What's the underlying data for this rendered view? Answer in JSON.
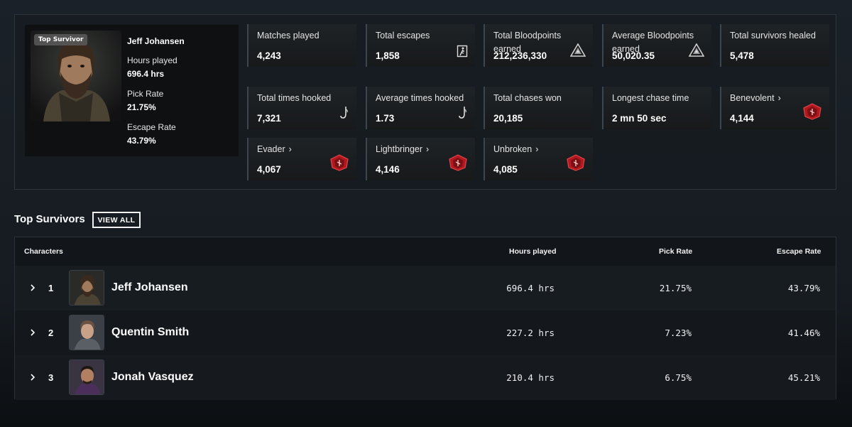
{
  "hero": {
    "tag": "Top Survivor",
    "name": "Jeff Johansen",
    "hours_label": "Hours played",
    "hours_value": "696.4 hrs",
    "pick_label": "Pick Rate",
    "pick_value": "21.75%",
    "escape_label": "Escape Rate",
    "escape_value": "43.79%"
  },
  "stats": [
    {
      "label": "Matches played",
      "value": "4,243",
      "icon": "none"
    },
    {
      "label": "Total escapes",
      "value": "1,858",
      "icon": "exit-door-icon"
    },
    {
      "label": "Total Bloodpoints earned",
      "value": "212,236,330",
      "icon": "bloodpoints-icon"
    },
    {
      "label": "Average Bloodpoints earned",
      "value": "50,020.35",
      "icon": "bloodpoints-icon"
    },
    {
      "label": "Total survivors healed",
      "value": "5,478",
      "icon": "none"
    },
    {
      "label": "Total times hooked",
      "value": "7,321",
      "icon": "hook-icon"
    },
    {
      "label": "Average times hooked",
      "value": "1.73",
      "icon": "hook-icon"
    },
    {
      "label": "Total chases won",
      "value": "20,185",
      "icon": "none"
    },
    {
      "label": "Longest chase time",
      "value": "2 mn 50 sec",
      "icon": "none"
    },
    {
      "label": "Benevolent",
      "value": "4,144",
      "icon": "emblem-icon",
      "link": true
    },
    {
      "label": "Evader",
      "value": "4,067",
      "icon": "emblem-icon",
      "link": true
    },
    {
      "label": "Lightbringer",
      "value": "4,146",
      "icon": "emblem-icon",
      "link": true
    },
    {
      "label": "Unbroken",
      "value": "4,085",
      "icon": "emblem-icon",
      "link": true
    }
  ],
  "top": {
    "title": "Top Survivors",
    "view_all": "VIEW ALL",
    "headers": {
      "characters": "Characters",
      "hours": "Hours played",
      "pick": "Pick Rate",
      "escape": "Escape Rate"
    },
    "rows": [
      {
        "rank": "1",
        "name": "Jeff Johansen",
        "hours": "696.4 hrs",
        "pick": "21.75%",
        "escape": "43.79%"
      },
      {
        "rank": "2",
        "name": "Quentin Smith",
        "hours": "227.2 hrs",
        "pick": "7.23%",
        "escape": "41.46%"
      },
      {
        "rank": "3",
        "name": "Jonah Vasquez",
        "hours": "210.4 hrs",
        "pick": "6.75%",
        "escape": "45.21%"
      }
    ]
  },
  "colors": {
    "emblem_red": "#c8262a",
    "card_border": "#3c4650",
    "background": "#1b2128"
  }
}
